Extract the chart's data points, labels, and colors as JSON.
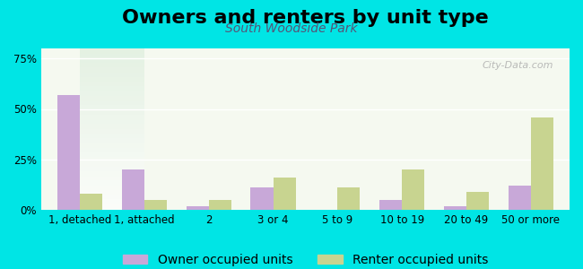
{
  "title": "Owners and renters by unit type",
  "subtitle": "South Woodside Park",
  "categories": [
    "1, detached",
    "1, attached",
    "2",
    "3 or 4",
    "5 to 9",
    "10 to 19",
    "20 to 49",
    "50 or more"
  ],
  "owner_values": [
    57,
    20,
    2,
    11,
    0,
    5,
    2,
    12
  ],
  "renter_values": [
    8,
    5,
    5,
    16,
    11,
    20,
    9,
    46
  ],
  "owner_color": "#c8a8d8",
  "renter_color": "#c8d490",
  "background_color": "#00e5e5",
  "plot_bg_top": "#e8f5e8",
  "plot_bg_bottom": "#ffffff",
  "ylim": [
    0,
    80
  ],
  "yticks": [
    0,
    25,
    50,
    75
  ],
  "ytick_labels": [
    "0%",
    "25%",
    "50%",
    "75%"
  ],
  "bar_width": 0.35,
  "title_fontsize": 16,
  "subtitle_fontsize": 10,
  "tick_fontsize": 8.5,
  "legend_fontsize": 10
}
